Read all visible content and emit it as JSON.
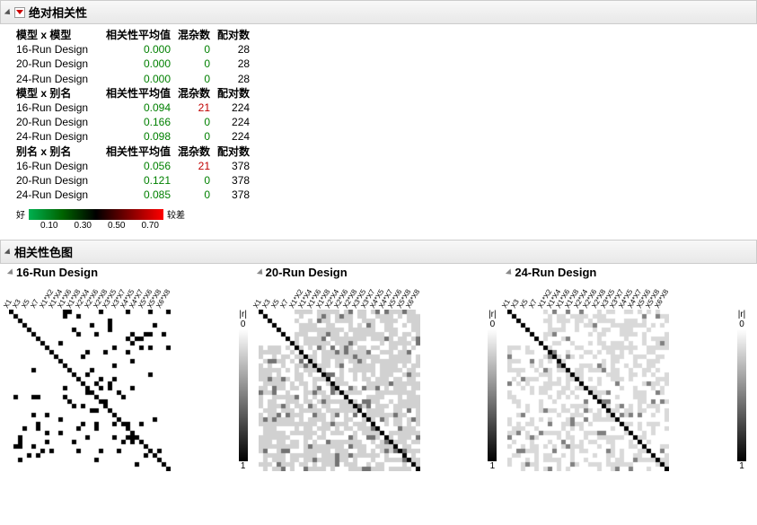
{
  "panel1": {
    "title": "绝对相关性",
    "groups": [
      {
        "header": [
          "模型 x 模型",
          "相关性平均值",
          "混杂数",
          "配对数"
        ],
        "rows": [
          {
            "name": "16-Run Design",
            "avg": "0.000",
            "avg_cls": "val-green",
            "conf": "0",
            "conf_cls": "val-green",
            "pairs": "28"
          },
          {
            "name": "20-Run Design",
            "avg": "0.000",
            "avg_cls": "val-green",
            "conf": "0",
            "conf_cls": "val-green",
            "pairs": "28"
          },
          {
            "name": "24-Run Design",
            "avg": "0.000",
            "avg_cls": "val-green",
            "conf": "0",
            "conf_cls": "val-green",
            "pairs": "28"
          }
        ]
      },
      {
        "header": [
          "模型 x 别名",
          "相关性平均值",
          "混杂数",
          "配对数"
        ],
        "rows": [
          {
            "name": "16-Run Design",
            "avg": "0.094",
            "avg_cls": "val-green",
            "conf": "21",
            "conf_cls": "val-red",
            "pairs": "224"
          },
          {
            "name": "20-Run Design",
            "avg": "0.166",
            "avg_cls": "val-green",
            "conf": "0",
            "conf_cls": "val-green",
            "pairs": "224"
          },
          {
            "name": "24-Run Design",
            "avg": "0.098",
            "avg_cls": "val-green",
            "conf": "0",
            "conf_cls": "val-green",
            "pairs": "224"
          }
        ]
      },
      {
        "header": [
          "别名 x 别名",
          "相关性平均值",
          "混杂数",
          "配对数"
        ],
        "rows": [
          {
            "name": "16-Run Design",
            "avg": "0.056",
            "avg_cls": "val-green",
            "conf": "21",
            "conf_cls": "val-red",
            "pairs": "378"
          },
          {
            "name": "20-Run Design",
            "avg": "0.121",
            "avg_cls": "val-green",
            "conf": "0",
            "conf_cls": "val-green",
            "pairs": "378"
          },
          {
            "name": "24-Run Design",
            "avg": "0.085",
            "avg_cls": "val-green",
            "conf": "0",
            "conf_cls": "val-green",
            "pairs": "378"
          }
        ]
      }
    ],
    "legend": {
      "good": "好",
      "bad": "较差",
      "ticks": [
        "0.10",
        "0.30",
        "0.50",
        "0.70"
      ]
    }
  },
  "panel2": {
    "title": "相关性色图",
    "scale_label": "|r|",
    "scale_min": "0",
    "scale_max": "1",
    "subpanels": [
      {
        "title": "16-Run Design",
        "n": 36,
        "px": 5,
        "style": "sparse",
        "labels": [
          "X1",
          "X3",
          "X5",
          "X7",
          "X1*X2",
          "X1*X4",
          "X1*X6",
          "X1*X8",
          "X2*X4",
          "X2*X6",
          "X2*X8",
          "X3*X5",
          "X3*X7",
          "X4*X5",
          "X4*X7",
          "X5*X6",
          "X5*X8",
          "X6*X8"
        ]
      },
      {
        "title": "20-Run Design",
        "n": 36,
        "px": 5,
        "style": "dense-grey",
        "labels": [
          "X1",
          "X3",
          "X5",
          "X7",
          "X1*X2",
          "X1*X4",
          "X1*X6",
          "X1*X8",
          "X2*X4",
          "X2*X6",
          "X2*X8",
          "X3*X5",
          "X3*X7",
          "X4*X5",
          "X4*X7",
          "X5*X6",
          "X5*X8",
          "X6*X8"
        ]
      },
      {
        "title": "24-Run Design",
        "n": 36,
        "px": 5,
        "style": "mixed-grey",
        "labels": [
          "X1",
          "X3",
          "X5",
          "X7",
          "X1*X2",
          "X1*X4",
          "X1*X6",
          "X1*X8",
          "X2*X4",
          "X2*X6",
          "X2*X8",
          "X3*X5",
          "X3*X7",
          "X4*X5",
          "X4*X7",
          "X5*X6",
          "X5*X8",
          "X6*X8"
        ]
      }
    ]
  }
}
